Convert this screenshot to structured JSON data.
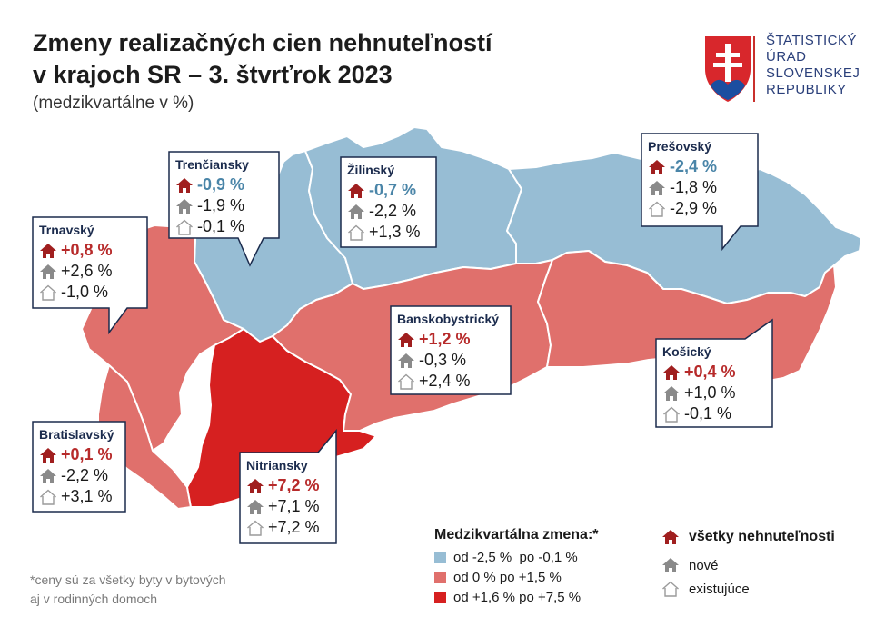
{
  "title_line1": "Zmeny realizačných cien nehnuteľností",
  "title_line2": "v krajoch SR – 3. štvrťrok 2023",
  "subtitle": "(medzikvartálne v %)",
  "logo": {
    "line1": "ŠTATISTICKÝ",
    "line2": "ÚRAD",
    "line3": "SLOVENSKEJ",
    "line4": "REPUBLIKY"
  },
  "colors": {
    "blue_region": "#97bdd4",
    "light_red_region": "#e0706c",
    "dark_red_region": "#d62020",
    "icon_all": "#a01f1f",
    "icon_new": "#8a8a8a",
    "icon_existing": "#9a9a9a"
  },
  "regions": {
    "trencin": {
      "name": "Trenčiansky",
      "all": "-0,9 %",
      "new": "-1,9 %",
      "existing": "-0,1 %",
      "category": "blue"
    },
    "zilina": {
      "name": "Žilinský",
      "all": "-0,7 %",
      "new": "-2,2 %",
      "existing": "+1,3 %",
      "category": "blue"
    },
    "presov": {
      "name": "Prešovský",
      "all": "-2,4 %",
      "new": "-1,8 %",
      "existing": "-2,9 %",
      "category": "blue"
    },
    "trnava": {
      "name": "Trnavský",
      "all": "+0,8 %",
      "new": "+2,6 %",
      "existing": "-1,0 %",
      "category": "light-red"
    },
    "banska_bystrica": {
      "name": "Banskobystrický",
      "all": "+1,2 %",
      "new": "-0,3 %",
      "existing": "+2,4 %",
      "category": "light-red"
    },
    "kosice": {
      "name": "Košický",
      "all": "+0,4 %",
      "new": "+1,0 %",
      "existing": "-0,1 %",
      "category": "light-red"
    },
    "bratislava": {
      "name": "Bratislavský",
      "all": "+0,1 %",
      "new": "-2,2 %",
      "existing": "+3,1 %",
      "category": "light-red"
    },
    "nitra": {
      "name": "Nitriansky",
      "all": "+7,2 %",
      "new": "+7,1 %",
      "existing": "+7,2 %",
      "category": "dark-red"
    }
  },
  "legend": {
    "title": "Medzikvartálna zmena:*",
    "ranges": [
      {
        "label": "od -2,5 %  po -0,1 %",
        "color": "#97bdd4"
      },
      {
        "label": "od 0 % po +1,5 %",
        "color": "#e0706c"
      },
      {
        "label": "od +1,6 % po +7,5 %",
        "color": "#d62020"
      }
    ],
    "types": {
      "all": "všetky nehnuteľnosti",
      "new": "nové",
      "existing": "existujúce"
    }
  },
  "footnote_line1": "*ceny sú za všetky byty v bytových",
  "footnote_line2": "aj v rodinných domoch"
}
